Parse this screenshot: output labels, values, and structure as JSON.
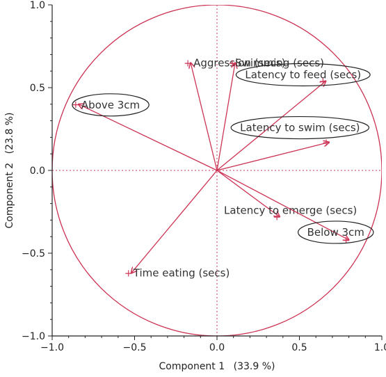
{
  "chart_data": {
    "type": "scatter",
    "subtype": "pca-correlation-circle",
    "title": "",
    "xlabel": "Component 1",
    "xlabel_pct": "(33.9 %)",
    "ylabel": "Component 2",
    "ylabel_pct": "(23.8 %)",
    "xlim": [
      -1.0,
      1.0
    ],
    "ylim": [
      -1.0,
      1.0
    ],
    "xticks": [
      -1.0,
      -0.5,
      0.0,
      0.5,
      1.0
    ],
    "yticks": [
      -1.0,
      -0.5,
      0.0,
      0.5,
      1.0
    ],
    "xtick_labels": [
      "−1.0",
      "−0.5",
      "0.0",
      "0.5",
      "1.0"
    ],
    "ytick_labels": [
      "−1.0",
      "−0.5",
      "0.0",
      "0.5",
      "1.0"
    ],
    "unit_circle": true,
    "origin_crosshair": "dotted",
    "grid": false,
    "colors": {
      "vectors": "#cc3355",
      "circle": "#cc3355",
      "ellipses": "#222222",
      "axes": "#222222"
    },
    "vectors": [
      {
        "name": "Aggression (secs)",
        "x": -0.16,
        "y": 0.65,
        "circled": false
      },
      {
        "name": "Swimming (secs)",
        "x": 0.11,
        "y": 0.65,
        "circled": false
      },
      {
        "name": "Latency to feed (secs)",
        "x": 0.66,
        "y": 0.54,
        "circled": true
      },
      {
        "name": "Above 3cm",
        "x": -0.84,
        "y": 0.4,
        "circled": true
      },
      {
        "name": "Latency to swim (secs)",
        "x": 0.68,
        "y": 0.17,
        "circled": true
      },
      {
        "name": "Latency to emerge (secs)",
        "x": 0.38,
        "y": -0.28,
        "circled": false
      },
      {
        "name": "Below 3cm",
        "x": 0.8,
        "y": -0.42,
        "circled": true
      },
      {
        "name": "Time eating (secs)",
        "x": -0.52,
        "y": -0.62,
        "circled": false
      }
    ]
  }
}
